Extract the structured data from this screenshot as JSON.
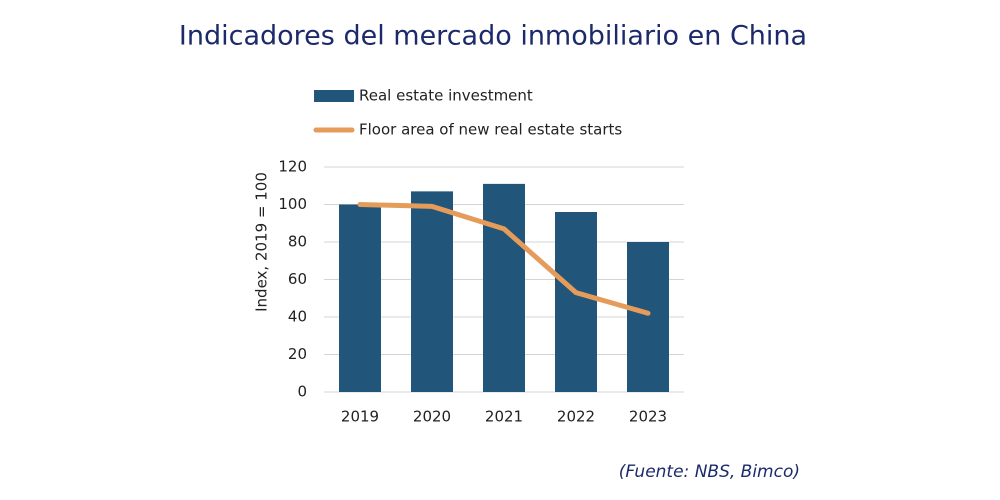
{
  "chart_data": {
    "type": "bar",
    "title": "Indicadores del mercado inmobiliario en China",
    "ylabel": "Index, 2019 = 100",
    "categories": [
      "2019",
      "2020",
      "2021",
      "2022",
      "2023"
    ],
    "series": [
      {
        "name": "Real estate investment",
        "type": "bar",
        "color": "#215579",
        "values": [
          100,
          107,
          111,
          96,
          80
        ]
      },
      {
        "name": "Floor area of new real estate starts",
        "type": "line",
        "color": "#e59c5b",
        "values": [
          100,
          99,
          87,
          53,
          42
        ]
      }
    ],
    "ylim": [
      0,
      120
    ],
    "yticks": [
      0,
      20,
      40,
      60,
      80,
      100,
      120
    ],
    "grid": true,
    "note": "(Fuente: NBS, Bimco)"
  }
}
